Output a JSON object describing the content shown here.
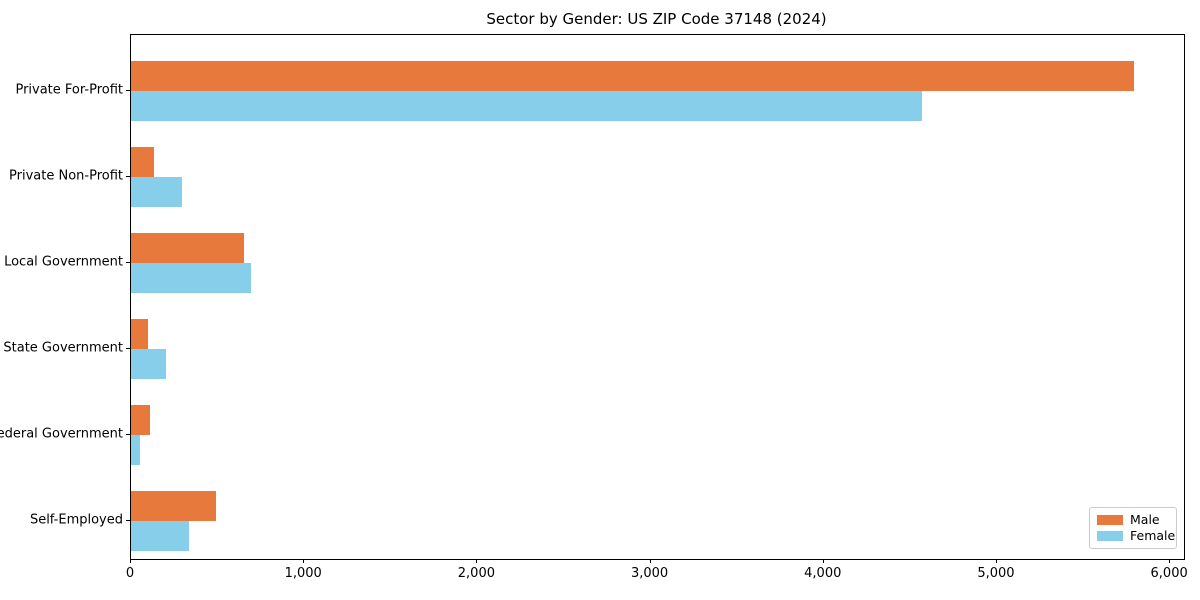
{
  "title": "Sector by Gender: US ZIP Code 37148 (2024)",
  "chart_data": {
    "type": "bar",
    "orientation": "horizontal",
    "title": "Sector by Gender: US ZIP Code 37148 (2024)",
    "categories": [
      "Private For-Profit",
      "Private Non-Profit",
      "Local Government",
      "State Government",
      "Federal Government",
      "Self-Employed"
    ],
    "series": [
      {
        "name": "Male",
        "color": "#e8793c",
        "values": [
          5790,
          135,
          650,
          100,
          110,
          490
        ]
      },
      {
        "name": "Female",
        "color": "#87ceeb",
        "values": [
          4570,
          295,
          690,
          200,
          50,
          335
        ]
      }
    ],
    "xlabel": "",
    "ylabel": "",
    "xlim": [
      0,
      6080
    ],
    "xticks": [
      0,
      1000,
      2000,
      3000,
      4000,
      5000,
      6000
    ],
    "xtick_labels": [
      "0",
      "1,000",
      "2,000",
      "3,000",
      "4,000",
      "5,000",
      "6,000"
    ],
    "grid": false,
    "legend_position": "lower right"
  },
  "legend": {
    "items": [
      {
        "label": "Male",
        "color": "#e8793c"
      },
      {
        "label": "Female",
        "color": "#87ceeb"
      }
    ]
  }
}
